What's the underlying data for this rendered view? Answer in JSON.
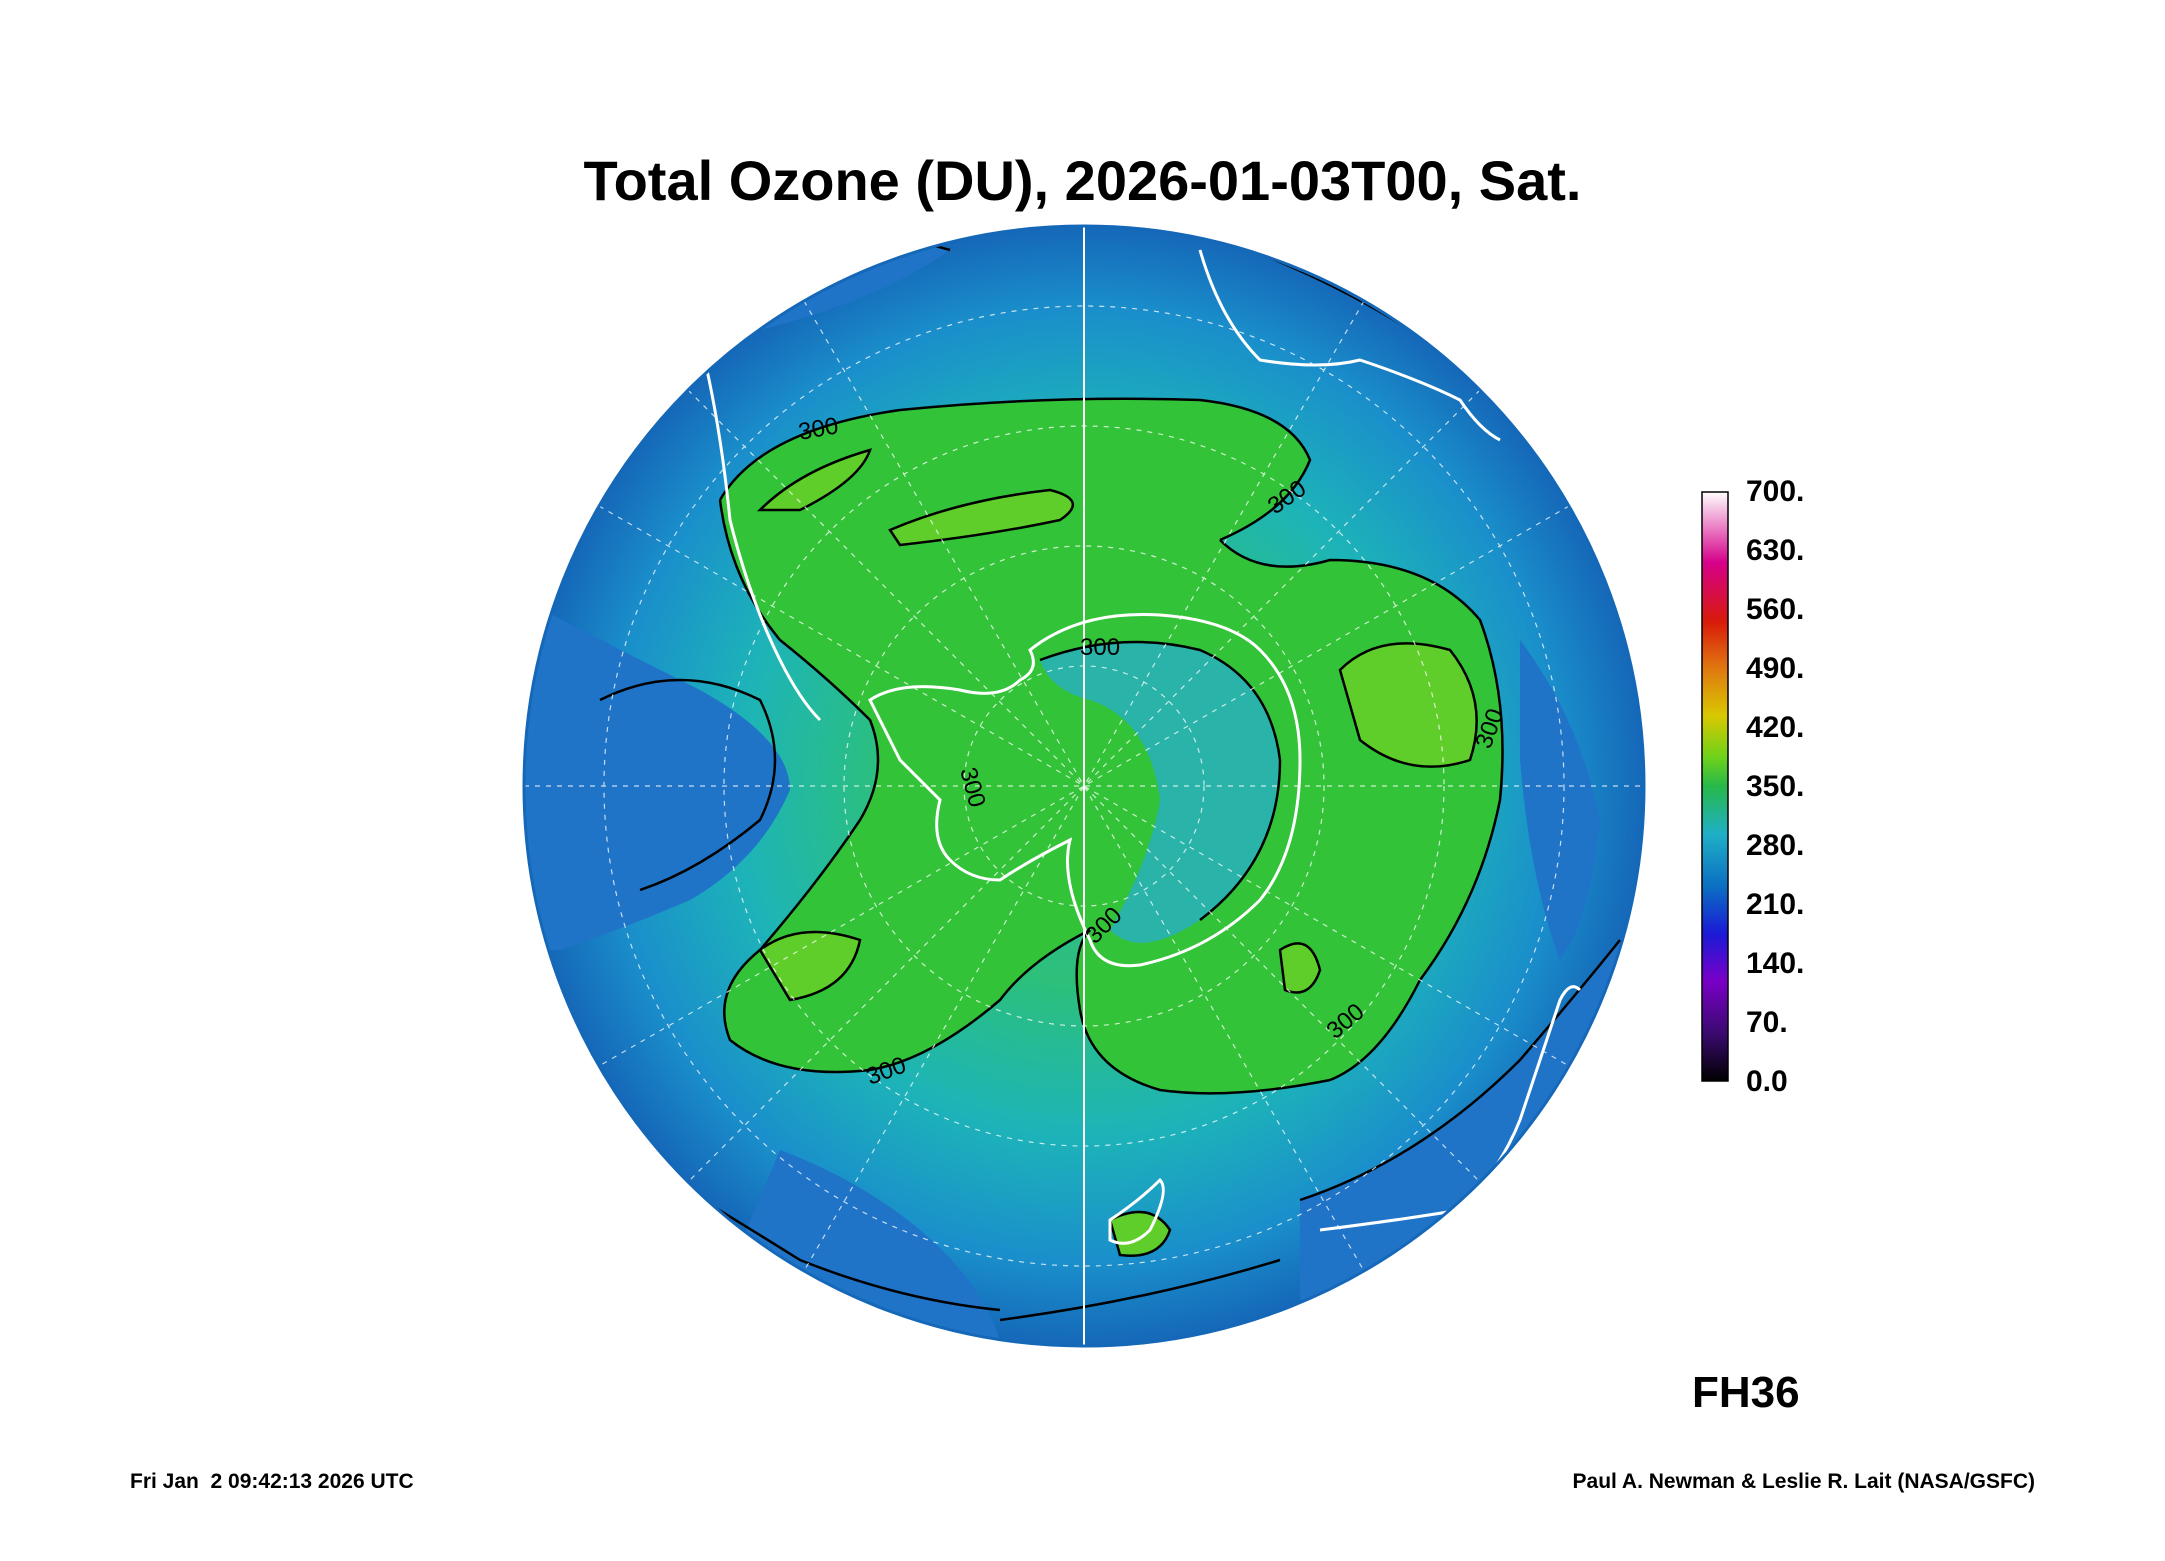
{
  "title": "Total Ozone (DU), 2026-01-03T00, Sat.",
  "forecast_hour": "FH36",
  "footer": {
    "timestamp": "Fri Jan  2 09:42:13 2026 UTC",
    "credit": "Paul A. Newman & Leslie R. Lait (NASA/GSFC)"
  },
  "colorbar": {
    "labels": [
      "700.",
      "630.",
      "560.",
      "490.",
      "420.",
      "350.",
      "280.",
      "210.",
      "140.",
      "70.",
      "0.0"
    ],
    "colors": [
      "#000000",
      "#3a0a6e",
      "#7a00c8",
      "#1a1ad6",
      "#0b6fc2",
      "#1fb0c6",
      "#26b84a",
      "#6ed21a",
      "#d8c800",
      "#e07810",
      "#d81a0a",
      "#d6008a",
      "#ffffff"
    ]
  },
  "contour_labels": [
    "300",
    "300",
    "300",
    "300",
    "300",
    "300",
    "300",
    "300"
  ],
  "map": {
    "projection": "south polar orthographic",
    "ocean_low_color": "#1f74c8",
    "mid_color": "#18b4b0",
    "high_color": "#33c338",
    "peak_color": "#5fce2a"
  }
}
